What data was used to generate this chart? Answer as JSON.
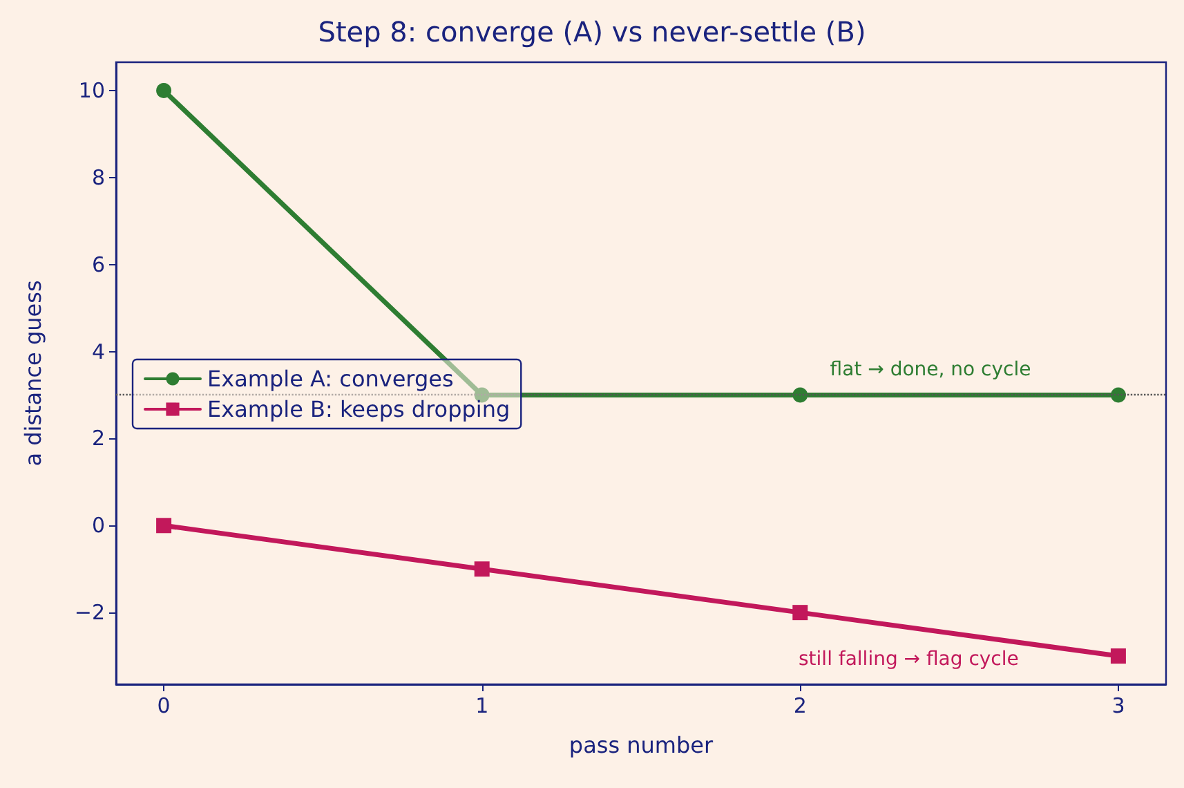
{
  "chart_data": {
    "type": "line",
    "title": "Step 8: converge (A) vs never-settle (B)",
    "xlabel": "pass number",
    "ylabel": "a distance guess",
    "x": [
      0,
      1,
      2,
      3
    ],
    "series": [
      {
        "name": "Example A: converges",
        "color": "#2e7d32",
        "marker": "circle",
        "values": [
          10,
          3,
          3,
          3
        ]
      },
      {
        "name": "Example B: keeps dropping",
        "color": "#c2185b",
        "marker": "square",
        "values": [
          0,
          -1,
          -2,
          -3
        ]
      }
    ],
    "xlim": [
      -0.15,
      3.15
    ],
    "xticks": [
      0,
      1,
      2,
      3
    ],
    "ylim": [
      -3.65,
      10.65
    ],
    "yticks": [
      -2,
      0,
      2,
      4,
      6,
      8,
      10
    ],
    "ref_lines": [
      {
        "axis": "y",
        "value": 3,
        "color": "#555555",
        "line_style": "dotted"
      }
    ],
    "annotations": [
      "flat → done, no cycle",
      "still falling → flag cycle"
    ],
    "grid": false,
    "legend": "left",
    "line_style": "solid"
  }
}
